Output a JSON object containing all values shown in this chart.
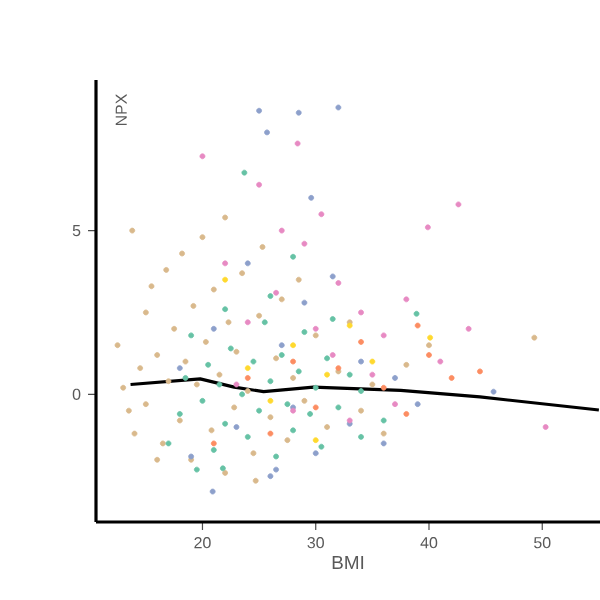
{
  "chart_data": {
    "type": "scatter",
    "xlabel": "BMI",
    "ylabel": "NPX",
    "xlim": [
      10.6,
      55.1
    ],
    "ylim": [
      -3.9,
      9.6
    ],
    "xticks": [
      20,
      30,
      40,
      50
    ],
    "yticks": [
      0,
      5
    ],
    "grid": false,
    "series": [
      {
        "color": "#d9b98c",
        "x": [
          13.8,
          12.5,
          13,
          13.5,
          14,
          14.5,
          15,
          15.5,
          15,
          16,
          16.5,
          16.8,
          17,
          17.5,
          18,
          18.2,
          18.5,
          19,
          19.2,
          19.5,
          20,
          20.3,
          20.8,
          21,
          21.5,
          22,
          22.3,
          22.8,
          23,
          23.5,
          24,
          24.5,
          25,
          25.3,
          26,
          26.5,
          27,
          27.5,
          28,
          28.5,
          29,
          30,
          31,
          32,
          33,
          34,
          35,
          36,
          38,
          40,
          49.3,
          16,
          22,
          24.7
        ],
        "values": [
          5.0,
          1.5,
          0.2,
          -0.5,
          -1.2,
          0.8,
          2.5,
          3.3,
          -0.3,
          1.2,
          -1.5,
          3.8,
          0.4,
          2.0,
          -0.8,
          4.3,
          1.0,
          -2.0,
          2.7,
          0.3,
          4.8,
          1.6,
          -1.1,
          3.2,
          0.6,
          5.4,
          2.2,
          -0.4,
          1.3,
          3.7,
          0.1,
          -1.8,
          2.4,
          4.5,
          -0.7,
          1.1,
          2.9,
          -1.4,
          0.5,
          3.5,
          -0.2,
          1.8,
          -1.0,
          0.7,
          2.2,
          -0.5,
          0.3,
          -1.2,
          0.9,
          1.5,
          1.73,
          -2.0,
          -2.4,
          -2.64
        ]
      },
      {
        "color": "#66c2a5",
        "x": [
          17,
          18,
          18.5,
          19,
          19.5,
          20,
          20.5,
          21,
          21.5,
          22,
          22,
          22.5,
          21.8,
          23.5,
          23.7,
          24,
          24.5,
          25,
          25.5,
          26,
          26.5,
          27,
          27.5,
          28,
          28,
          28.5,
          29,
          29.5,
          30,
          30.5,
          31,
          31.5,
          32,
          33,
          34,
          36,
          38.9,
          34,
          26
        ],
        "values": [
          -1.5,
          -0.6,
          0.5,
          1.8,
          -2.3,
          -0.2,
          0.9,
          -1.7,
          0.3,
          2.6,
          -0.9,
          1.4,
          -2.26,
          0.0,
          6.77,
          -1.3,
          1.0,
          -0.5,
          2.2,
          0.4,
          -1.9,
          1.2,
          -0.3,
          4.2,
          -1.1,
          0.7,
          1.9,
          -0.6,
          0.2,
          -1.6,
          1.1,
          2.3,
          -0.4,
          0.6,
          -1.3,
          -0.8,
          2.46,
          0.1,
          3.0
        ]
      },
      {
        "color": "#8da0cb",
        "x": [
          25.0,
          28.5,
          32.0,
          25.7,
          29.6,
          20.9,
          18,
          19,
          21,
          23,
          24,
          26.5,
          27,
          28,
          29,
          30,
          31.5,
          33,
          34,
          36,
          37,
          39,
          45.7,
          26
        ],
        "values": [
          8.66,
          8.6,
          8.76,
          8.0,
          6.0,
          -2.97,
          0.8,
          -1.9,
          2.0,
          -1.0,
          4.0,
          -2.3,
          1.5,
          -0.4,
          2.8,
          -1.8,
          3.6,
          -0.9,
          1.0,
          -1.5,
          0.5,
          -0.3,
          0.08,
          -2.5
        ]
      },
      {
        "color": "#e78ac3",
        "x": [
          20.0,
          28.4,
          42.6,
          39.9,
          22,
          24,
          25,
          26.5,
          27,
          28,
          29,
          30,
          30.5,
          31.5,
          32,
          33,
          34,
          35,
          36,
          37,
          38,
          41,
          43.5,
          50.3,
          23
        ],
        "values": [
          7.27,
          7.66,
          5.8,
          5.1,
          4.0,
          2.2,
          6.4,
          3.1,
          5.0,
          -0.5,
          4.6,
          2.0,
          5.5,
          1.2,
          3.4,
          -0.8,
          2.5,
          0.6,
          1.8,
          -0.3,
          2.9,
          1.0,
          2.0,
          -1.0,
          0.3
        ]
      },
      {
        "color": "#fc8d62",
        "x": [
          21,
          24,
          26,
          28,
          30,
          32,
          34,
          36,
          38,
          40,
          42,
          44.5,
          39
        ],
        "values": [
          -1.5,
          0.5,
          -1.2,
          1.0,
          -0.4,
          0.8,
          1.6,
          0.2,
          -0.6,
          1.2,
          0.5,
          0.7,
          2.1
        ]
      },
      {
        "color": "#ffd92f",
        "x": [
          22,
          24,
          26,
          28,
          30,
          31,
          33,
          35,
          40.1
        ],
        "values": [
          3.5,
          0.8,
          -0.2,
          1.5,
          -1.4,
          0.6,
          2.1,
          1.0,
          1.73
        ]
      },
      {
        "type": "line",
        "color": "#000000",
        "x": [
          13.65,
          19.8,
          22.8,
          25.4,
          29.8,
          37.5,
          44.5,
          55.0
        ],
        "values": [
          0.3,
          0.47,
          0.22,
          0.08,
          0.22,
          0.12,
          -0.08,
          -0.48
        ]
      }
    ]
  }
}
